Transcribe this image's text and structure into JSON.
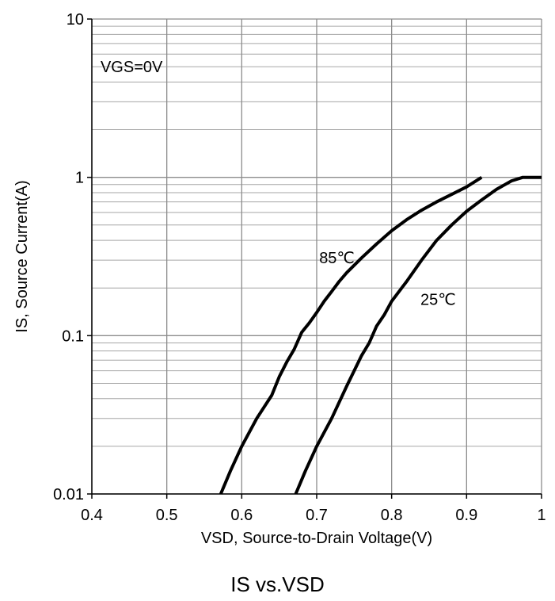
{
  "caption": "IS vs.VSD",
  "chart_data": {
    "type": "line",
    "title": "",
    "xlabel": "VSD, Source-to-Drain Voltage(V)",
    "ylabel": "IS, Source Current(A)",
    "xlim": [
      0.4,
      1.0
    ],
    "ylim": [
      0.01,
      10
    ],
    "y_scale": "log",
    "grid": true,
    "x_ticks": [
      0.4,
      0.5,
      0.6,
      0.7,
      0.8,
      0.9,
      1.0
    ],
    "x_tick_labels": [
      "0.4",
      "0.5",
      "0.6",
      "0.7",
      "0.8",
      "0.9",
      "1"
    ],
    "y_ticks": [
      0.01,
      0.1,
      1,
      10
    ],
    "y_tick_labels": [
      "0.01",
      "0.1",
      "1",
      "10"
    ],
    "annotations": [
      {
        "text": "VGS=0V",
        "x": 0.453,
        "y": 5.0
      },
      {
        "text": "85℃",
        "x": 0.727,
        "y": 0.31
      },
      {
        "text": "25℃",
        "x": 0.862,
        "y": 0.17
      }
    ],
    "series": [
      {
        "name": "85℃",
        "x": [
          0.572,
          0.585,
          0.6,
          0.62,
          0.64,
          0.65,
          0.66,
          0.67,
          0.68,
          0.69,
          0.7,
          0.71,
          0.72,
          0.73,
          0.74,
          0.76,
          0.78,
          0.8,
          0.82,
          0.84,
          0.86,
          0.88,
          0.9,
          0.92
        ],
        "y": [
          0.01,
          0.014,
          0.02,
          0.03,
          0.042,
          0.055,
          0.068,
          0.082,
          0.105,
          0.12,
          0.14,
          0.165,
          0.19,
          0.22,
          0.25,
          0.31,
          0.38,
          0.46,
          0.54,
          0.62,
          0.7,
          0.78,
          0.87,
          1.0
        ]
      },
      {
        "name": "25℃",
        "x": [
          0.672,
          0.685,
          0.7,
          0.72,
          0.74,
          0.76,
          0.77,
          0.78,
          0.79,
          0.8,
          0.82,
          0.84,
          0.86,
          0.88,
          0.9,
          0.92,
          0.94,
          0.96,
          0.975,
          1.0
        ],
        "y": [
          0.01,
          0.014,
          0.02,
          0.03,
          0.048,
          0.075,
          0.09,
          0.115,
          0.135,
          0.165,
          0.22,
          0.3,
          0.4,
          0.5,
          0.61,
          0.72,
          0.84,
          0.95,
          1.0,
          1.0
        ]
      }
    ]
  }
}
